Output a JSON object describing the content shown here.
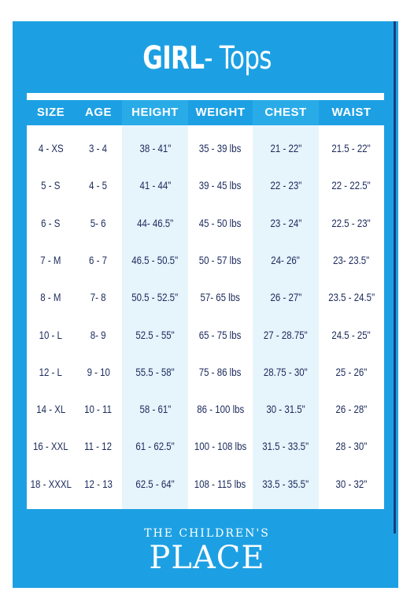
{
  "title": {
    "bold": "GIRL",
    "rest": "- Tops"
  },
  "headers": [
    "SIZE",
    "AGE",
    "HEIGHT",
    "WEIGHT",
    "CHEST",
    "WAIST"
  ],
  "rows": [
    [
      "4 - XS",
      "3 - 4",
      "38 - 41\"",
      "35 - 39 lbs",
      "21 - 22\"",
      "21.5 - 22\""
    ],
    [
      "5 - S",
      "4 - 5",
      "41 - 44\"",
      "39 - 45 lbs",
      "22 - 23\"",
      "22 - 22.5\""
    ],
    [
      "6 - S",
      "5- 6",
      "44- 46.5\"",
      "45 - 50 lbs",
      "23 - 24\"",
      "22.5 - 23\""
    ],
    [
      "7 - M",
      "6 - 7",
      "46.5 - 50.5\"",
      "50 - 57 lbs",
      "24- 26\"",
      "23- 23.5\""
    ],
    [
      "8 - M",
      "7- 8",
      "50.5 - 52.5\"",
      "57- 65 lbs",
      "26 - 27\"",
      "23.5 - 24.5\""
    ],
    [
      "10 - L",
      "8- 9",
      "52.5 - 55\"",
      "65 - 75 lbs",
      "27 - 28.75\"",
      "24.5 - 25\""
    ],
    [
      "12 - L",
      "9 - 10",
      "55.5 - 58\"",
      "75 - 86 lbs",
      "28.75 - 30\"",
      "25 - 26\""
    ],
    [
      "14 - XL",
      "10 - 11",
      "58 - 61\"",
      "86 - 100 lbs",
      "30 - 31.5\"",
      "26 - 28\""
    ],
    [
      "16 - XXL",
      "11 - 12",
      "61 - 62.5\"",
      "100 - 108 lbs",
      "31.5 - 33.5\"",
      "28 - 30\""
    ],
    [
      "18 - XXXL",
      "12 - 13",
      "62.5 - 64\"",
      "108 - 115 lbs",
      "33.5 - 35.5\"",
      "30 - 32\""
    ]
  ],
  "logo": {
    "line1": "THE CHILDREN'S",
    "line2": "PLACE"
  },
  "colors": {
    "brand_blue": "#1da0e3",
    "text_navy": "#1b2a5b",
    "shaded_column": "#e6f4fc"
  }
}
